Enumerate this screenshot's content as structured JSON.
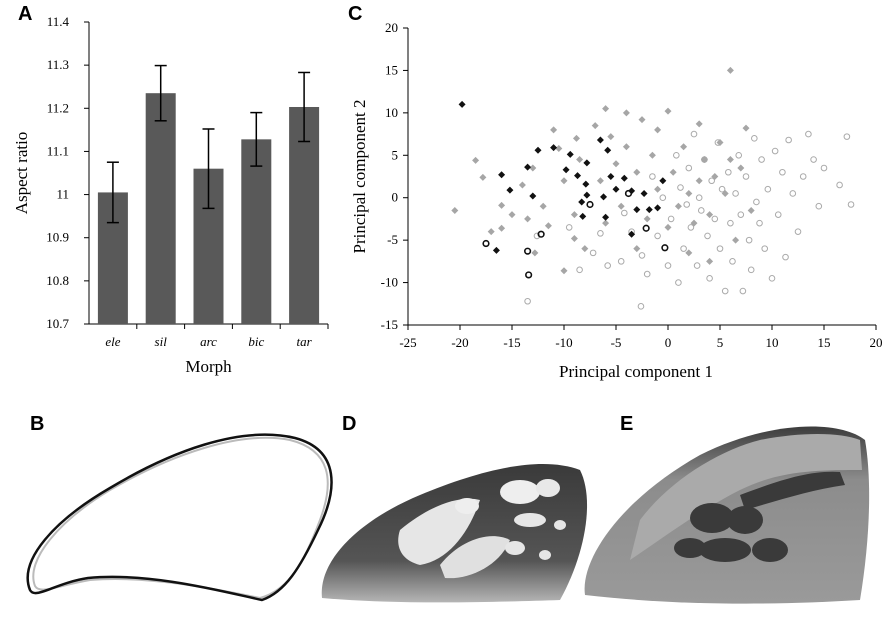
{
  "chart_data": [
    {
      "type": "bar",
      "panel": "A",
      "y_label": "Aspect ratio",
      "x_label": "Morph",
      "categories": [
        "ele",
        "sil",
        "arc",
        "bic",
        "tar"
      ],
      "values": [
        11.005,
        11.235,
        11.06,
        11.128,
        11.203
      ],
      "errors": [
        0.07,
        0.064,
        0.092,
        0.062,
        0.08
      ],
      "color": "#595959",
      "ylim": [
        10.7,
        11.4
      ],
      "yticks": [
        10.7,
        10.8,
        10.9,
        11,
        11.1,
        11.2,
        11.3,
        11.4
      ]
    },
    {
      "type": "scatter",
      "panel": "C",
      "x_label": "Principal component 1",
      "y_label": "Principal component 2",
      "xlim": [
        -25,
        20
      ],
      "xticks": [
        -25,
        -20,
        -15,
        -10,
        -5,
        0,
        5,
        10,
        15,
        20
      ],
      "ylim": [
        -15,
        20
      ],
      "yticks": [
        -15,
        -10,
        -5,
        0,
        5,
        10,
        15,
        20
      ],
      "series": [
        {
          "color": "#aaaaaa",
          "marker": "circle",
          "x": [
            -13.5,
            -12.6,
            -9.5,
            -8.5,
            -7.2,
            -6.5,
            -5.8,
            -4.5,
            -4.2,
            -3.5,
            -2.6,
            -2.5,
            -2,
            -1,
            -0.5,
            0,
            0.3,
            0.8,
            1,
            1.2,
            1.5,
            2,
            2.2,
            2.5,
            2.8,
            3,
            3.2,
            3.5,
            3.8,
            4,
            4.2,
            4.5,
            4.8,
            5,
            5.2,
            5.5,
            5.8,
            6,
            6.2,
            6.5,
            6.8,
            7,
            7.2,
            7.5,
            7.8,
            8,
            8.3,
            8.5,
            8.8,
            9,
            9.3,
            9.6,
            10,
            10.3,
            10.6,
            11,
            11.3,
            11.6,
            12,
            12.5,
            13,
            13.5,
            14,
            14.5,
            15,
            16.5,
            17.2,
            17.6,
            -1.5,
            1.8
          ],
          "values": [
            -12.2,
            -4.5,
            -3.5,
            -8.5,
            -6.5,
            -4.2,
            -8,
            -7.5,
            -1.8,
            -4,
            -12.8,
            -6.8,
            -9,
            -4.5,
            0,
            -8,
            -2.5,
            5,
            -10,
            1.2,
            -6,
            3.5,
            -3.5,
            7.5,
            -8,
            0,
            -1.5,
            4.5,
            -4.5,
            -9.5,
            2,
            -2.5,
            6.5,
            -6,
            1,
            -11,
            3,
            -3,
            -7.5,
            0.5,
            5,
            -2,
            -11,
            2.5,
            -5,
            -8.5,
            7,
            -0.5,
            -3,
            4.5,
            -6,
            1,
            -9.5,
            5.5,
            -2,
            3,
            -7,
            6.8,
            0.5,
            -4,
            2.5,
            7.5,
            4.5,
            -1,
            3.5,
            1.5,
            7.2,
            -0.8,
            2.5,
            -0.8
          ]
        },
        {
          "color": "#a6a6a6",
          "marker": "diamond",
          "x": [
            -18.5,
            -17.8,
            -16,
            -15,
            -14,
            -13,
            -12,
            -11.5,
            -10.5,
            -10,
            -9,
            -8.5,
            -7,
            -6.5,
            -6,
            -5.5,
            -5,
            -4.5,
            -4,
            -3,
            -2.5,
            -2,
            -1.5,
            -1,
            0,
            0.5,
            1,
            1.5,
            2,
            2.5,
            3,
            3.5,
            4,
            4.5,
            5,
            5.5,
            6,
            6.5,
            7,
            7.5,
            8,
            -12.8,
            -10,
            -8,
            -17,
            -3,
            0,
            2,
            4,
            -11,
            -6,
            -1,
            3,
            -13.5,
            -8.8,
            -4,
            6,
            -16,
            -20.5,
            -9
          ],
          "values": [
            4.4,
            2.4,
            -0.9,
            -2,
            1.5,
            3.5,
            -1,
            -3.3,
            5.8,
            2,
            -2,
            4.5,
            8.5,
            2,
            -3,
            7.2,
            4,
            -1,
            6,
            3,
            9.2,
            -2.5,
            5,
            8,
            10.2,
            3,
            -1,
            6,
            0.5,
            -3,
            8.7,
            4.5,
            -2,
            2.5,
            6.5,
            0.5,
            15,
            -5,
            3.5,
            8.2,
            -1.5,
            -6.5,
            -8.6,
            -6,
            -4,
            -6,
            -3.5,
            -6.5,
            -7.5,
            8,
            10.5,
            1,
            2,
            -2.5,
            7,
            10,
            4.5,
            -3.6,
            -1.5,
            -4.8
          ]
        },
        {
          "color": "#111111",
          "marker": "diamond",
          "x": [
            -19.8,
            -12.5,
            -13.5,
            -15.2,
            -16,
            -13,
            -16.5,
            -11,
            -9.4,
            -9.8,
            -8.7,
            -7.8,
            -7.8,
            -8.3,
            -6.5,
            -5.8,
            -5.5,
            -5,
            -4.2,
            -3.5,
            -2.3,
            -3,
            -1.8,
            -7.9,
            -6.2,
            -8.2,
            -6,
            -3.5,
            -1,
            -0.5
          ],
          "values": [
            11,
            5.6,
            3.6,
            0.9,
            2.7,
            0.2,
            -6.2,
            5.9,
            5.1,
            3.3,
            2.6,
            4.1,
            0.3,
            -0.5,
            6.8,
            5.6,
            2.5,
            1,
            2.3,
            0.8,
            0.5,
            -1.4,
            -1.4,
            1.6,
            0.1,
            -2.2,
            -2.3,
            -4.3,
            -1.2,
            2
          ]
        },
        {
          "color": "#111111",
          "marker": "circle",
          "x": [
            -17.5,
            -12.2,
            -13.5,
            -13.4,
            -7.5,
            -3.8,
            -2.1,
            -0.3
          ],
          "values": [
            -5.4,
            -4.3,
            -6.3,
            -9.1,
            -0.8,
            0.5,
            -3.6,
            -5.9
          ]
        }
      ]
    }
  ],
  "images": [
    {
      "panel": "B"
    },
    {
      "panel": "D"
    },
    {
      "panel": "E"
    }
  ]
}
